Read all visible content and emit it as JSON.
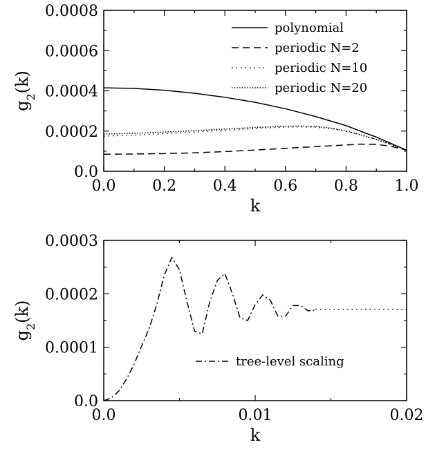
{
  "chart_data": [
    {
      "type": "line",
      "xlabel": "k",
      "ylabel": "g2(k)",
      "xlim": [
        0,
        1
      ],
      "ylim": [
        0,
        0.0008
      ],
      "xticks": [
        0.0,
        0.2,
        0.4,
        0.6,
        0.8,
        1.0
      ],
      "xtick_labels": [
        "0.0",
        "0.2",
        "0.4",
        "0.6",
        "0.8",
        "1.0"
      ],
      "yticks": [
        0,
        0.0002,
        0.0004,
        0.0006,
        0.0008
      ],
      "ytick_labels": [
        "0.0",
        "0.0002",
        "0.0004",
        "0.0006",
        "0.0008"
      ],
      "legend_position": "top-right",
      "grid": false,
      "series": [
        {
          "name": "polynomial",
          "style": "solid",
          "x": [
            0.0,
            0.1,
            0.2,
            0.3,
            0.4,
            0.5,
            0.6,
            0.7,
            0.8,
            0.9,
            1.0
          ],
          "y": [
            0.000415,
            0.000412,
            0.000403,
            0.000388,
            0.000368,
            0.000343,
            0.000311,
            0.000272,
            0.000227,
            0.00017,
            0.000105
          ]
        },
        {
          "name": "periodic N=2",
          "style": "dashed",
          "x": [
            0.0,
            0.1,
            0.2,
            0.3,
            0.4,
            0.5,
            0.6,
            0.7,
            0.8,
            0.85,
            0.9,
            0.95,
            1.0
          ],
          "y": [
            8.5e-05,
            8.6e-05,
            8.8e-05,
            9.2e-05,
            9.8e-05,
            0.000106,
            0.000114,
            0.000123,
            0.000131,
            0.000135,
            0.000134,
            0.000124,
            0.000105
          ]
        },
        {
          "name": "periodic N=10",
          "style": "sparse-dotted",
          "x": [
            0.0,
            0.1,
            0.2,
            0.3,
            0.4,
            0.5,
            0.6,
            0.65,
            0.7,
            0.75,
            0.8,
            0.85,
            0.9,
            0.95,
            1.0
          ],
          "y": [
            0.000175,
            0.00018,
            0.000187,
            0.000195,
            0.000204,
            0.000213,
            0.00022,
            0.000221,
            0.000219,
            0.000212,
            0.000199,
            0.00018,
            0.000158,
            0.000132,
            0.000105
          ]
        },
        {
          "name": "periodic N=20",
          "style": "dense-dotted",
          "x": [
            0.0,
            0.1,
            0.2,
            0.3,
            0.4,
            0.5,
            0.6,
            0.65,
            0.7,
            0.75,
            0.8,
            0.85,
            0.9,
            0.95,
            1.0
          ],
          "y": [
            0.000185,
            0.000189,
            0.000195,
            0.000202,
            0.00021,
            0.000218,
            0.000224,
            0.000225,
            0.000223,
            0.000215,
            0.000201,
            0.000181,
            0.000159,
            0.000133,
            0.000105
          ]
        }
      ]
    },
    {
      "type": "line",
      "xlabel": "k",
      "ylabel": "g2(k)",
      "xlim": [
        0,
        0.02
      ],
      "ylim": [
        0,
        0.0003
      ],
      "xticks": [
        0.0,
        0.01,
        0.02
      ],
      "xtick_labels": [
        "0.0",
        "0.01",
        "0.02"
      ],
      "yticks": [
        0,
        0.0001,
        0.0002,
        0.0003
      ],
      "ytick_labels": [
        "0.0",
        "0.0001",
        "0.0002",
        "0.0003"
      ],
      "legend_position": "center-right",
      "grid": false,
      "series": [
        {
          "name": "tree-level scaling",
          "style": "dash-dot",
          "x": [
            0.0,
            0.0005,
            0.001,
            0.0015,
            0.002,
            0.0025,
            0.003,
            0.0035,
            0.004,
            0.0045,
            0.005,
            0.0055,
            0.006,
            0.0065,
            0.007,
            0.0075,
            0.008,
            0.0085,
            0.009,
            0.0095,
            0.01,
            0.0105,
            0.011,
            0.0115,
            0.012,
            0.0125,
            0.013,
            0.0135,
            0.014
          ],
          "y": [
            0.0,
            5e-06,
            1.8e-05,
            4e-05,
            6.8e-05,
            0.000102,
            0.000135,
            0.00018,
            0.000235,
            0.000268,
            0.000245,
            0.000185,
            0.00013,
            0.000125,
            0.000185,
            0.000225,
            0.000238,
            0.0002,
            0.000155,
            0.00015,
            0.00018,
            0.000198,
            0.000188,
            0.000158,
            0.000158,
            0.000178,
            0.000178,
            0.000168,
            0.00017
          ]
        },
        {
          "name": "",
          "style": "sparse-dotted",
          "x": [
            0.014,
            0.02
          ],
          "y": [
            0.000171,
            0.000171
          ]
        }
      ]
    }
  ]
}
